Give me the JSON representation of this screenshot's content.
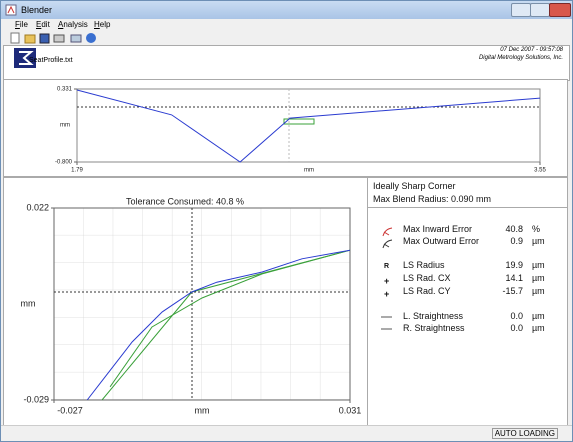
{
  "window": {
    "title": "Blender"
  },
  "menu": [
    "File",
    "Edit",
    "Analysis",
    "Help"
  ],
  "header": {
    "file": "SeatProfile.txt",
    "date": "07 Dec 2007 - 09:57:08",
    "company": "Digital Metrology Solutions, Inc."
  },
  "profile_chart": {
    "type": "line",
    "x_label": "mm",
    "y_label": "mm",
    "xlim": [
      1.79,
      3.55
    ],
    "xticks": [
      1.79,
      3.55
    ],
    "ylim": [
      -0.8,
      0.331
    ],
    "yticks": [
      {
        "value": -0.8,
        "label": "-0.800"
      },
      0.331
    ],
    "series": [
      {
        "color": "#2a3bd0",
        "x": [
          1.79,
          2.15,
          2.41,
          2.6,
          3.55
        ],
        "values": [
          0.315,
          -0.07,
          -0.8,
          -0.12,
          0.19
        ]
      }
    ]
  },
  "zoom_chart": {
    "type": "line",
    "title": "Tolerance Consumed: 40.8 %",
    "x_label": "mm",
    "y_label": "mm",
    "xlim": [
      -0.027,
      0.031
    ],
    "xticks": [
      -0.027,
      0.031
    ],
    "ylim": [
      -0.029,
      0.022
    ],
    "yticks": [
      -0.029,
      0.022
    ],
    "series": [
      {
        "color": "#3aa03a",
        "x": [
          -0.0176,
          0.0,
          0.031
        ],
        "values": [
          -0.029,
          -0.0003,
          0.0108
        ]
      },
      {
        "color": "#3aa03a",
        "x": [
          -0.016,
          -0.0078,
          0.002,
          0.0138,
          0.031
        ],
        "values": [
          -0.0255,
          -0.0096,
          -0.0019,
          0.0045,
          0.0108
        ]
      },
      {
        "color": "#2a3bd0",
        "x": [
          -0.0205,
          -0.0117,
          -0.0058,
          0.0,
          0.0049,
          0.0138,
          0.0216,
          0.031
        ],
        "values": [
          -0.029,
          -0.0136,
          -0.0056,
          -0.0003,
          0.0023,
          0.005,
          0.0085,
          0.0108
        ]
      }
    ]
  },
  "results": {
    "title": "Ideally Sharp Corner",
    "subtitle": "Max Blend Radius: 0.090 mm",
    "rows": [
      {
        "label": "Max Inward Error",
        "value": "40.8",
        "unit": "%"
      },
      {
        "label": "Max Outward Error",
        "value": "0.9",
        "unit": "µm"
      },
      {
        "icon": "R",
        "label": "LS Radius",
        "value": "19.9",
        "unit": "µm"
      },
      {
        "icon": "+",
        "label": "LS Rad. CX",
        "value": "14.1",
        "unit": "µm"
      },
      {
        "icon": "+",
        "label": "LS Rad. CY",
        "value": "-15.7",
        "unit": "µm"
      },
      {
        "label": "L. Straightness",
        "value": "0.0",
        "unit": "µm"
      },
      {
        "label": "R. Straightness",
        "value": "0.0",
        "unit": "µm"
      }
    ]
  },
  "status": "AUTO LOADING"
}
